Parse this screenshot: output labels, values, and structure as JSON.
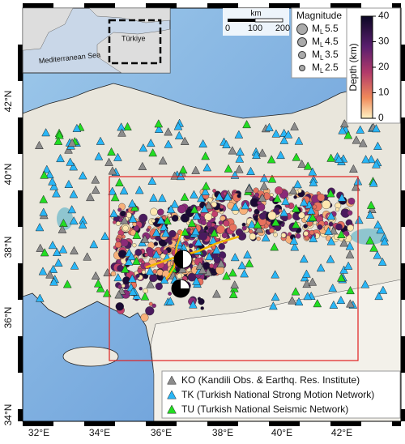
{
  "inset": {
    "country": "Türkiye",
    "sea": "Mediterranean Sea"
  },
  "scale_bar": {
    "unit": "km",
    "labels": [
      "0",
      "100",
      "200"
    ]
  },
  "magnitude_legend": {
    "title": "Magnitude",
    "items": [
      {
        "symbol": "M",
        "sub": "L",
        "value": "5.5"
      },
      {
        "symbol": "M",
        "sub": "L",
        "value": "4.5"
      },
      {
        "symbol": "M",
        "sub": "L",
        "value": "3.5"
      },
      {
        "symbol": "M",
        "sub": "L",
        "value": "2.5"
      }
    ]
  },
  "colorbar": {
    "label": "Depth (km)",
    "ticks": [
      "40",
      "30",
      "20",
      "10",
      "0"
    ]
  },
  "legend": [
    {
      "text": "KO (Kandili Obs. & Earthq. Res. Institute)",
      "color": "#8c8c8c"
    },
    {
      "text": "TK (Turkish National Strong Motion Network)",
      "color": "#29b6f6"
    },
    {
      "text": "TU (Turkish National Seismic Network)",
      "color": "#22dd22"
    }
  ],
  "axes": {
    "x_labels": [
      "32°E",
      "34°E",
      "36°E",
      "38°E",
      "40°E",
      "42°E"
    ],
    "y_labels": [
      "42°N",
      "40°N",
      "38°N",
      "36°N",
      "34°N"
    ]
  }
}
